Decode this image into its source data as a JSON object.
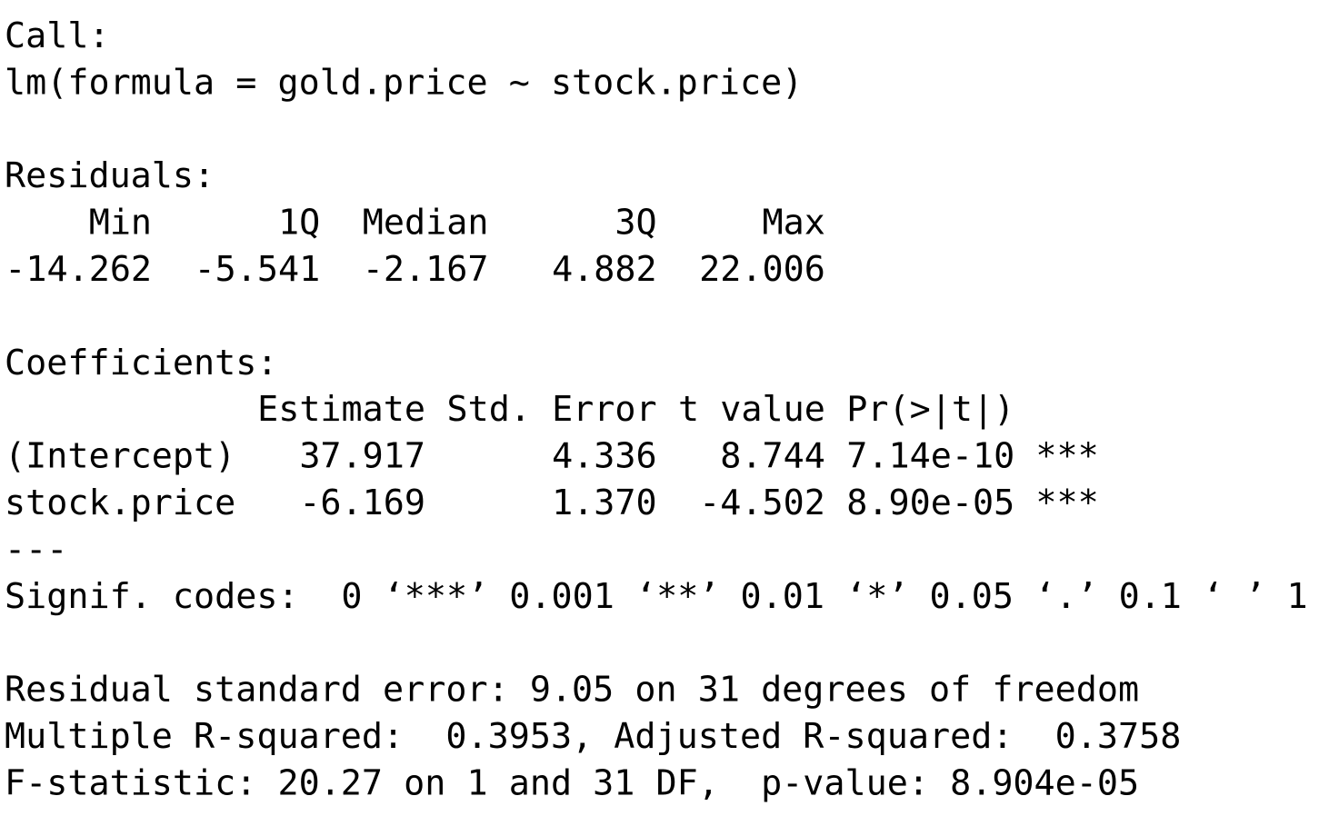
{
  "call": {
    "label": "Call:",
    "formula": "lm(formula = gold.price ~ stock.price)"
  },
  "residuals": {
    "label": "Residuals:",
    "headers": [
      "Min",
      "1Q",
      "Median",
      "3Q",
      "Max"
    ],
    "values": [
      "-14.262",
      "-5.541",
      "-2.167",
      "4.882",
      "22.006"
    ]
  },
  "coefficients": {
    "label": "Coefficients:",
    "headers": [
      "Estimate",
      "Std. Error",
      "t value",
      "Pr(>|t|)"
    ],
    "rows": [
      {
        "name": "(Intercept)",
        "cells": [
          "37.917",
          "4.336",
          "8.744",
          "7.14e-10"
        ],
        "signif": "***"
      },
      {
        "name": "stock.price",
        "cells": [
          "-6.169",
          "1.370",
          "-4.502",
          "8.90e-05"
        ],
        "signif": "***"
      }
    ]
  },
  "separator": "---",
  "signif_codes": {
    "label": "Signif. codes:",
    "codes": "0 ‘***’ 0.001 ‘**’ 0.01 ‘*’ 0.05 ‘.’ 0.1 ‘ ’ 1"
  },
  "summary": [
    "Residual standard error: 9.05 on 31 degrees of freedom",
    "Multiple R-squared:  0.3953, Adjusted R-squared:  0.3758",
    "F-statistic: 20.27 on 1 and 31 DF,  p-value: 8.904e-05"
  ]
}
